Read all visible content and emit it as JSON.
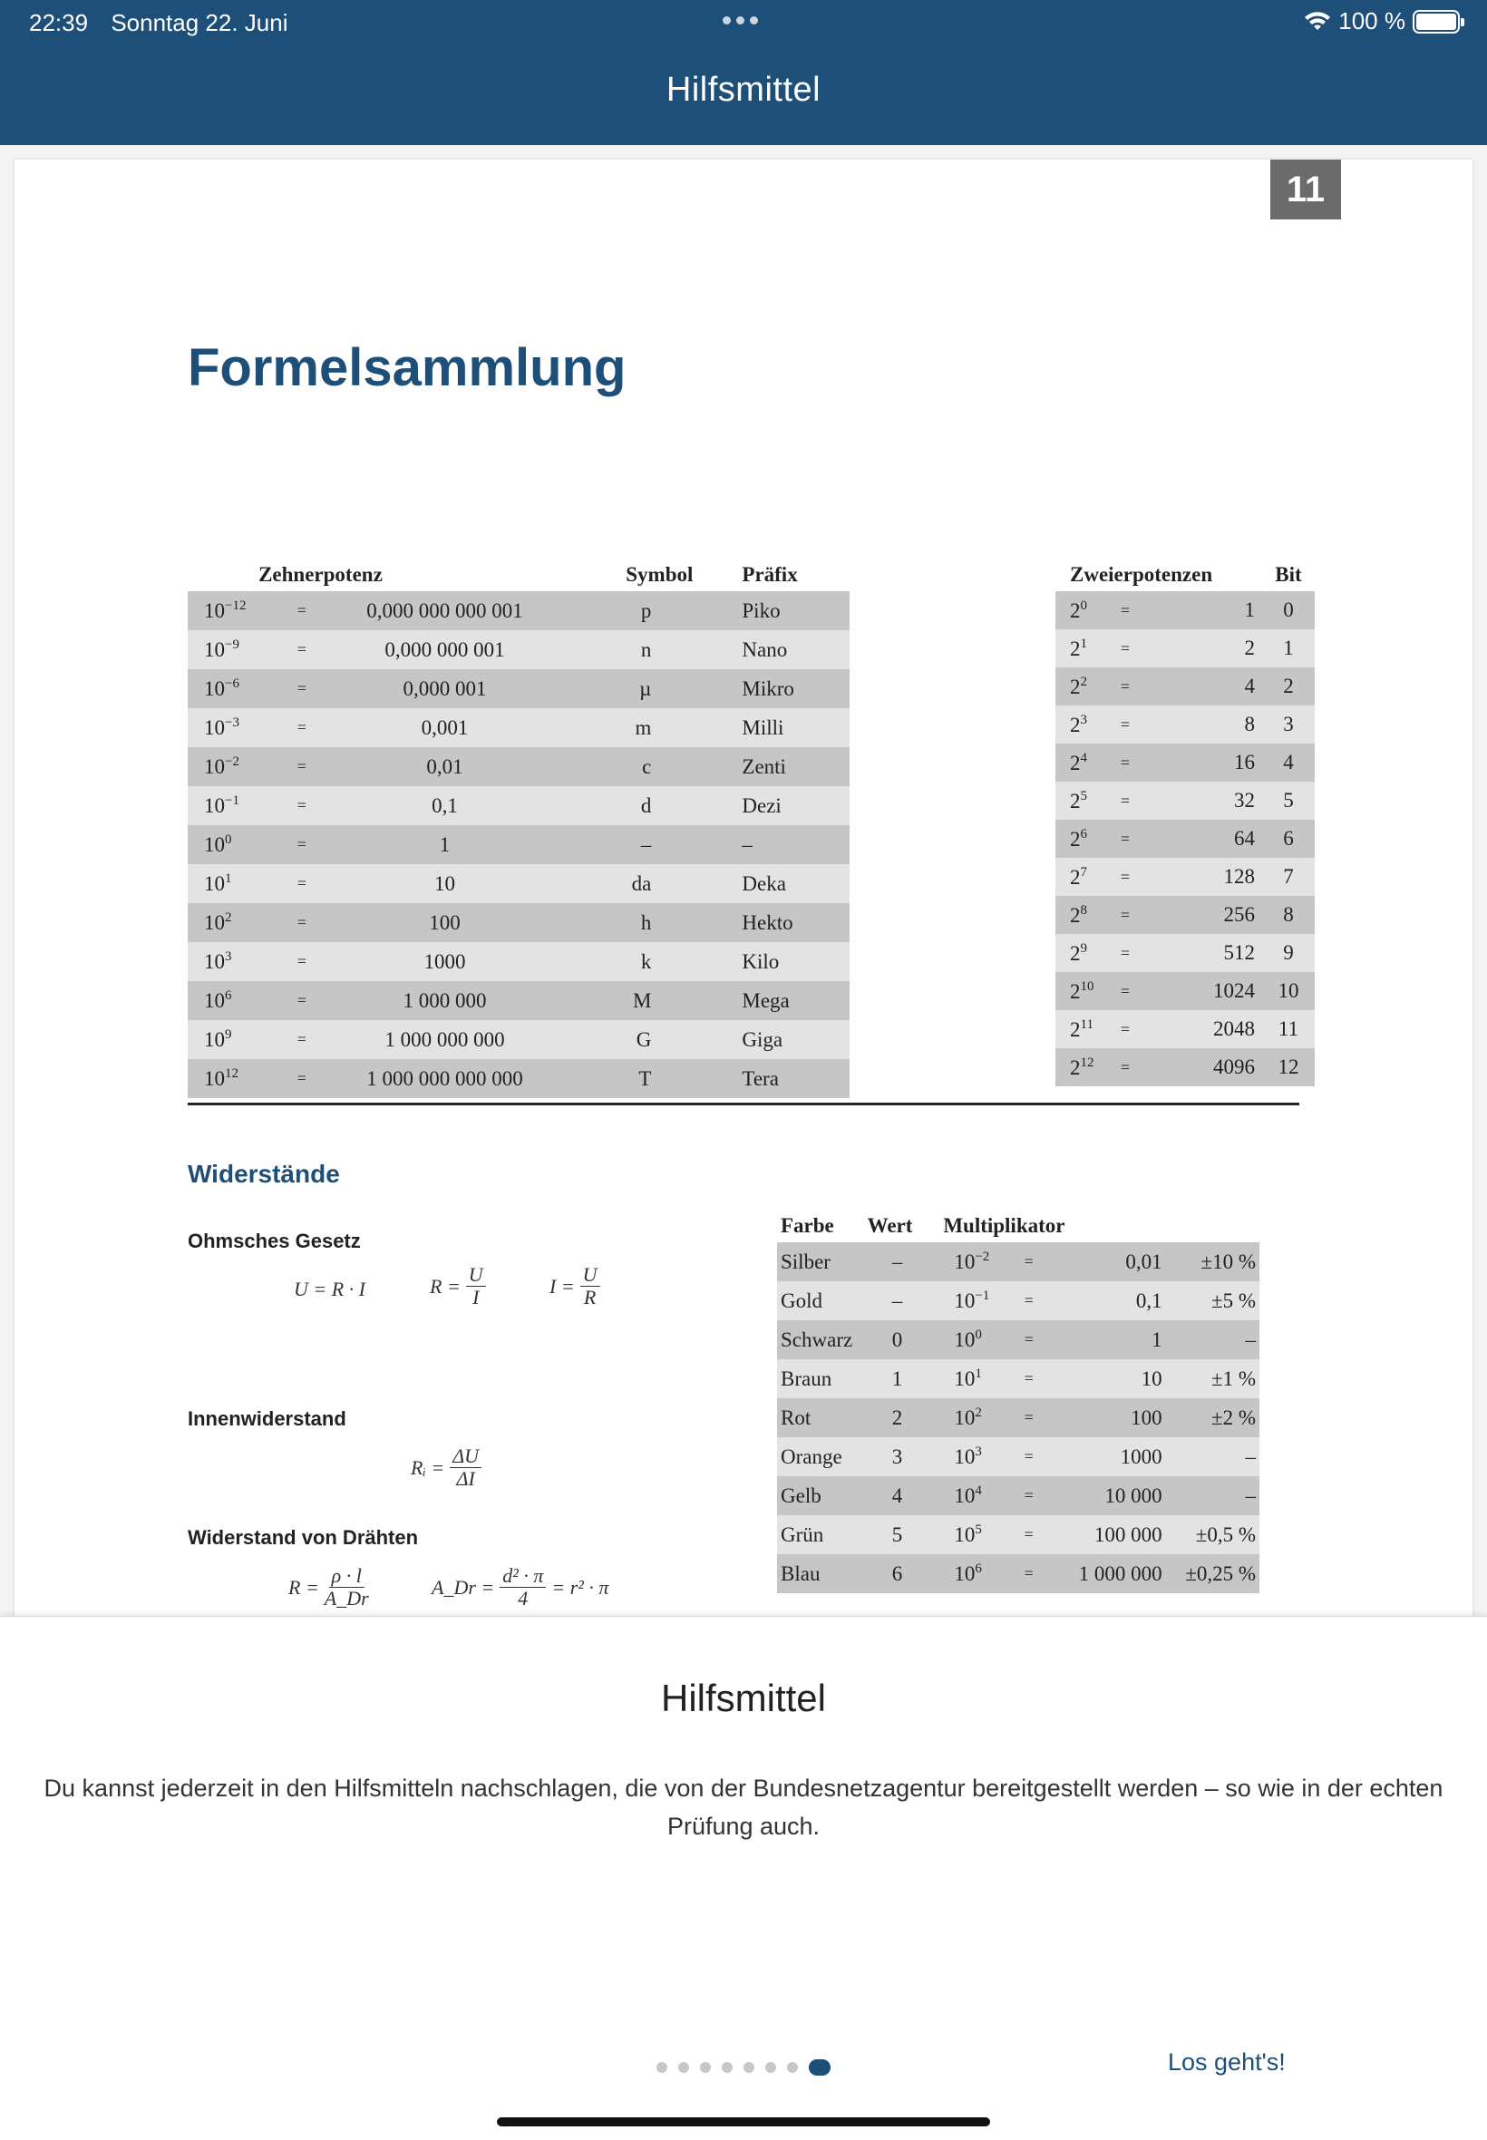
{
  "status_bar": {
    "time": "22:39",
    "date": "Sonntag 22. Juni",
    "battery": "100 %",
    "battery_level": 1.0
  },
  "header": {
    "title": "Hilfsmittel"
  },
  "document": {
    "page_number": "11",
    "title": "Formelsammlung",
    "prefix_table": {
      "headers": {
        "power": "Zehnerpotenz",
        "symbol": "Symbol",
        "prefix": "Präfix"
      },
      "rows": [
        {
          "base": "10",
          "exp": "−12",
          "eq": "=",
          "value": "0,000 000 000 001",
          "symbol": "p",
          "prefix": "Piko"
        },
        {
          "base": "10",
          "exp": "−9",
          "eq": "=",
          "value": "0,000 000 001",
          "symbol": "n",
          "prefix": "Nano"
        },
        {
          "base": "10",
          "exp": "−6",
          "eq": "=",
          "value": "0,000 001",
          "symbol": "µ",
          "prefix": "Mikro"
        },
        {
          "base": "10",
          "exp": "−3",
          "eq": "=",
          "value": "0,001",
          "symbol": "m",
          "prefix": "Milli"
        },
        {
          "base": "10",
          "exp": "−2",
          "eq": "=",
          "value": "0,01",
          "symbol": "c",
          "prefix": "Zenti"
        },
        {
          "base": "10",
          "exp": "−1",
          "eq": "=",
          "value": "0,1",
          "symbol": "d",
          "prefix": "Dezi"
        },
        {
          "base": "10",
          "exp": "0",
          "eq": "=",
          "value": "1",
          "symbol": "–",
          "prefix": "–"
        },
        {
          "base": "10",
          "exp": "1",
          "eq": "=",
          "value": "10",
          "symbol": "da",
          "prefix": "Deka"
        },
        {
          "base": "10",
          "exp": "2",
          "eq": "=",
          "value": "100",
          "symbol": "h",
          "prefix": "Hekto"
        },
        {
          "base": "10",
          "exp": "3",
          "eq": "=",
          "value": "1000",
          "symbol": "k",
          "prefix": "Kilo"
        },
        {
          "base": "10",
          "exp": "6",
          "eq": "=",
          "value": "1 000 000",
          "symbol": "M",
          "prefix": "Mega"
        },
        {
          "base": "10",
          "exp": "9",
          "eq": "=",
          "value": "1 000 000 000",
          "symbol": "G",
          "prefix": "Giga"
        },
        {
          "base": "10",
          "exp": "12",
          "eq": "=",
          "value": "1 000 000 000 000",
          "symbol": "T",
          "prefix": "Tera"
        }
      ]
    },
    "binary_table": {
      "headers": {
        "power": "Zweierpotenzen",
        "bit": "Bit"
      },
      "rows": [
        {
          "base": "2",
          "exp": "0",
          "eq": "=",
          "value": "1",
          "bit": "0"
        },
        {
          "base": "2",
          "exp": "1",
          "eq": "=",
          "value": "2",
          "bit": "1"
        },
        {
          "base": "2",
          "exp": "2",
          "eq": "=",
          "value": "4",
          "bit": "2"
        },
        {
          "base": "2",
          "exp": "3",
          "eq": "=",
          "value": "8",
          "bit": "3"
        },
        {
          "base": "2",
          "exp": "4",
          "eq": "=",
          "value": "16",
          "bit": "4"
        },
        {
          "base": "2",
          "exp": "5",
          "eq": "=",
          "value": "32",
          "bit": "5"
        },
        {
          "base": "2",
          "exp": "6",
          "eq": "=",
          "value": "64",
          "bit": "6"
        },
        {
          "base": "2",
          "exp": "7",
          "eq": "=",
          "value": "128",
          "bit": "7"
        },
        {
          "base": "2",
          "exp": "8",
          "eq": "=",
          "value": "256",
          "bit": "8"
        },
        {
          "base": "2",
          "exp": "9",
          "eq": "=",
          "value": "512",
          "bit": "9"
        },
        {
          "base": "2",
          "exp": "10",
          "eq": "=",
          "value": "1024",
          "bit": "10"
        },
        {
          "base": "2",
          "exp": "11",
          "eq": "=",
          "value": "2048",
          "bit": "11"
        },
        {
          "base": "2",
          "exp": "12",
          "eq": "=",
          "value": "4096",
          "bit": "12"
        }
      ]
    },
    "resistors": {
      "title": "Widerstände",
      "ohm_title": "Ohmsches Gesetz",
      "ohm_formulas": {
        "f1": "U = R · I",
        "f2_lhs": "R =",
        "f2_num": "U",
        "f2_den": "I",
        "f3_lhs": "I =",
        "f3_num": "U",
        "f3_den": "R"
      },
      "inner_title": "Innenwiderstand",
      "inner_formula": {
        "lhs": "Rᵢ =",
        "num": "ΔU",
        "den": "ΔI"
      },
      "wire_title": "Widerstand von Drähten",
      "wire_formulas": {
        "f1_lhs": "R =",
        "f1_num": "ρ · l",
        "f1_den": "A_Dr",
        "f2_lhs": "A_Dr =",
        "f2_num": "d² · π",
        "f2_den": "4",
        "f2_rhs": "= r² · π"
      }
    },
    "color_table": {
      "headers": {
        "color": "Farbe",
        "value": "Wert",
        "multiplier": "Multiplikator"
      },
      "rows": [
        {
          "color": "Silber",
          "value": "–",
          "base": "10",
          "exp": "−2",
          "eq": "=",
          "mult": "0,01",
          "tol": "±10 %"
        },
        {
          "color": "Gold",
          "value": "–",
          "base": "10",
          "exp": "−1",
          "eq": "=",
          "mult": "0,1",
          "tol": "±5 %"
        },
        {
          "color": "Schwarz",
          "value": "0",
          "base": "10",
          "exp": "0",
          "eq": "=",
          "mult": "1",
          "tol": "–"
        },
        {
          "color": "Braun",
          "value": "1",
          "base": "10",
          "exp": "1",
          "eq": "=",
          "mult": "10",
          "tol": "±1 %"
        },
        {
          "color": "Rot",
          "value": "2",
          "base": "10",
          "exp": "2",
          "eq": "=",
          "mult": "100",
          "tol": "±2 %"
        },
        {
          "color": "Orange",
          "value": "3",
          "base": "10",
          "exp": "3",
          "eq": "=",
          "mult": "1000",
          "tol": "–"
        },
        {
          "color": "Gelb",
          "value": "4",
          "base": "10",
          "exp": "4",
          "eq": "=",
          "mult": "10 000",
          "tol": "–"
        },
        {
          "color": "Grün",
          "value": "5",
          "base": "10",
          "exp": "5",
          "eq": "=",
          "mult": "100 000",
          "tol": "±0,5 %"
        },
        {
          "color": "Blau",
          "value": "6",
          "base": "10",
          "exp": "6",
          "eq": "=",
          "mult": "1 000 000",
          "tol": "±0,25 %"
        }
      ]
    }
  },
  "sheet": {
    "title": "Hilfsmittel",
    "text": "Du kannst jederzeit in den Hilfsmitteln nachschlagen, die von der Bundesnetzagentur bereitgestellt werden – so wie in der echten Prüfung auch.",
    "pager": {
      "total": 8,
      "active_index": 7
    },
    "cta": "Los geht's!"
  }
}
